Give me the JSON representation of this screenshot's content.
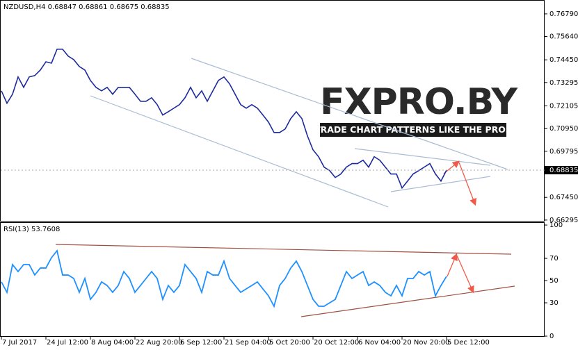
{
  "chart_data": [
    {
      "type": "line",
      "title": "NZDUSD,H4 0.68847 0.68861 0.68675 0.68835",
      "color": "#1c2a9c",
      "categories": [
        "7 Jul 2017",
        null,
        null,
        null,
        null,
        null,
        null,
        null,
        "24 Jul 12:00",
        null,
        null,
        null,
        null,
        null,
        null,
        null,
        "8 Aug 04:00",
        null,
        null,
        null,
        null,
        null,
        null,
        null,
        "22 Aug 20:00",
        null,
        null,
        null,
        null,
        null,
        null,
        null,
        "6 Sep 12:00",
        null,
        null,
        null,
        null,
        null,
        null,
        null,
        "21 Sep 04:00",
        null,
        null,
        null,
        null,
        null,
        null,
        null,
        "5 Oct 20:00",
        null,
        null,
        null,
        null,
        null,
        null,
        null,
        "20 Oct 12:00",
        null,
        null,
        null,
        null,
        null,
        null,
        null,
        "6 Nov 04:00",
        null,
        null,
        null,
        null,
        null,
        null,
        null,
        "20 Nov 20:00",
        null,
        null,
        null,
        null,
        null,
        null,
        null,
        "5 Dec 12:00"
      ],
      "values": [
        0.7287,
        0.7224,
        0.727,
        0.7358,
        0.7305,
        0.7358,
        0.7365,
        0.7393,
        0.7435,
        0.7428,
        0.7499,
        0.7499,
        0.7464,
        0.7446,
        0.7411,
        0.7393,
        0.734,
        0.7305,
        0.7287,
        0.7305,
        0.727,
        0.7305,
        0.7305,
        0.7305,
        0.727,
        0.7234,
        0.7234,
        0.7252,
        0.7217,
        0.7164,
        0.7181,
        0.7199,
        0.7217,
        0.7252,
        0.7305,
        0.7252,
        0.7287,
        0.7234,
        0.7287,
        0.734,
        0.7358,
        0.7323,
        0.727,
        0.7217,
        0.7199,
        0.7217,
        0.7199,
        0.7164,
        0.7128,
        0.7075,
        0.7075,
        0.7093,
        0.7146,
        0.7181,
        0.7146,
        0.7058,
        0.6987,
        0.6952,
        0.6899,
        0.6881,
        0.6846,
        0.6864,
        0.6899,
        0.6917,
        0.6917,
        0.6934,
        0.6899,
        0.6952,
        0.6934,
        0.6899,
        0.6864,
        0.6864,
        0.6793,
        0.6828,
        0.6864,
        0.6881,
        0.6899,
        0.6917,
        0.6864,
        0.6828,
        0.68835
      ],
      "ylim": [
        0.6622,
        0.7746
      ],
      "yticks": [
        {
          "value": 0.7679,
          "label": "0.76790"
        },
        {
          "value": 0.7564,
          "label": "0.75640"
        },
        {
          "value": 0.7445,
          "label": "0.74450"
        },
        0.73295,
        0.72105,
        {
          "value": 0.7095,
          "label": "0.70950"
        },
        0.69795,
        {
          "value": 0.6745,
          "label": "0.67450"
        },
        0.66295
      ],
      "grid": false,
      "watermark_title": "FXPRO.BY",
      "watermark_tagline": "TRADE CHART PATTERNS LIKE THE PROS"
    },
    {
      "type": "line",
      "title": "RSI(13) 53.7608",
      "color": "#1e90ff",
      "values": [
        48.8,
        39.4,
        64.4,
        58.1,
        64.4,
        64.4,
        55,
        61.3,
        61.3,
        70.6,
        76.9,
        55,
        55,
        51.9,
        39.4,
        51.9,
        33.1,
        39.4,
        48.8,
        45.6,
        39.4,
        45.6,
        58.1,
        51.9,
        39.4,
        45.6,
        51.9,
        58.1,
        51.9,
        33.1,
        45.6,
        39.4,
        45.6,
        64.4,
        58.1,
        51.9,
        39.4,
        58.1,
        55,
        55,
        67.5,
        51.9,
        45.6,
        39.4,
        42.5,
        45.6,
        48.8,
        42.5,
        36.3,
        26.9,
        45.6,
        51.9,
        61.3,
        67.5,
        58.1,
        45.6,
        33.1,
        26.9,
        26.9,
        30,
        33.1,
        45.6,
        58.1,
        51.9,
        55,
        58.1,
        45.6,
        48.8,
        45.6,
        39.4,
        36.3,
        45.6,
        36.3,
        51.9,
        51.9,
        58.1,
        55,
        58.1,
        36.3,
        45.6,
        53.7608
      ],
      "ylim": [
        -0.6,
        101.9
      ],
      "yticks": [
        100,
        70,
        50,
        30,
        0
      ],
      "grid": false
    }
  ]
}
